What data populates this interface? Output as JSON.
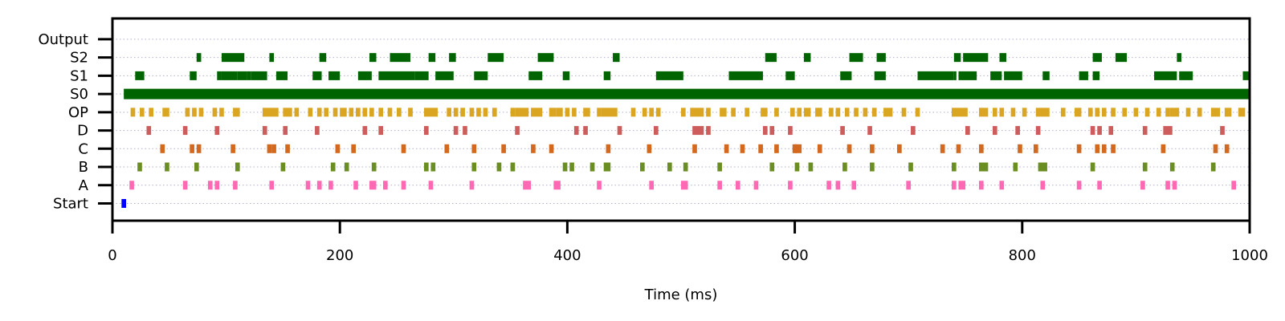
{
  "chart_data": {
    "type": "raster",
    "xlabel": "Time (ms)",
    "xlim": [
      0,
      1000
    ],
    "x_ticks": [
      0,
      200,
      400,
      600,
      800,
      1000
    ],
    "grid": "horizontal-dotted",
    "rows": [
      "Start",
      "A",
      "B",
      "C",
      "D",
      "OP",
      "S0",
      "S1",
      "S2",
      "Output"
    ],
    "colors": {
      "Start": "#0000ff",
      "A": "#ff69b4",
      "B": "#6b8e23",
      "C": "#d2691e",
      "D": "#cd5c5c",
      "OP": "#daa520",
      "S0": "#006400",
      "S1": "#006400",
      "S2": "#006400",
      "Output": "#000000",
      "grid": "#b0b0d0"
    },
    "series": [
      {
        "name": "Start",
        "intervals": [
          [
            8,
            12
          ]
        ]
      },
      {
        "name": "A",
        "intervals": [
          [
            15,
            19
          ],
          [
            62,
            66
          ],
          [
            84,
            88
          ],
          [
            90,
            94
          ],
          [
            106,
            110
          ],
          [
            138,
            142
          ],
          [
            170,
            174
          ],
          [
            180,
            184
          ],
          [
            190,
            194
          ],
          [
            212,
            216
          ],
          [
            226,
            232
          ],
          [
            238,
            242
          ],
          [
            254,
            258
          ],
          [
            278,
            282
          ],
          [
            314,
            318
          ],
          [
            361,
            368
          ],
          [
            388,
            394
          ],
          [
            426,
            430
          ],
          [
            472,
            476
          ],
          [
            500,
            506
          ],
          [
            532,
            536
          ],
          [
            548,
            552
          ],
          [
            564,
            568
          ],
          [
            594,
            598
          ],
          [
            628,
            632
          ],
          [
            636,
            640
          ],
          [
            650,
            654
          ],
          [
            698,
            702
          ],
          [
            738,
            742
          ],
          [
            744,
            750
          ],
          [
            762,
            766
          ],
          [
            780,
            784
          ],
          [
            816,
            820
          ],
          [
            848,
            852
          ],
          [
            866,
            870
          ],
          [
            904,
            908
          ],
          [
            926,
            930
          ],
          [
            932,
            936
          ],
          [
            984,
            988
          ]
        ]
      },
      {
        "name": "B",
        "intervals": [
          [
            22,
            26
          ],
          [
            46,
            50
          ],
          [
            72,
            76
          ],
          [
            108,
            112
          ],
          [
            148,
            152
          ],
          [
            192,
            196
          ],
          [
            204,
            208
          ],
          [
            228,
            232
          ],
          [
            274,
            278
          ],
          [
            280,
            284
          ],
          [
            316,
            320
          ],
          [
            338,
            342
          ],
          [
            350,
            354
          ],
          [
            396,
            400
          ],
          [
            402,
            406
          ],
          [
            420,
            424
          ],
          [
            432,
            438
          ],
          [
            464,
            468
          ],
          [
            488,
            492
          ],
          [
            502,
            506
          ],
          [
            532,
            536
          ],
          [
            578,
            582
          ],
          [
            600,
            604
          ],
          [
            612,
            616
          ],
          [
            642,
            646
          ],
          [
            666,
            670
          ],
          [
            700,
            704
          ],
          [
            738,
            742
          ],
          [
            762,
            770
          ],
          [
            792,
            796
          ],
          [
            814,
            822
          ],
          [
            860,
            864
          ],
          [
            906,
            910
          ],
          [
            930,
            934
          ],
          [
            966,
            970
          ]
        ]
      },
      {
        "name": "C",
        "intervals": [
          [
            42,
            46
          ],
          [
            68,
            72
          ],
          [
            74,
            78
          ],
          [
            104,
            108
          ],
          [
            136,
            140
          ],
          [
            140,
            144
          ],
          [
            152,
            156
          ],
          [
            196,
            200
          ],
          [
            210,
            214
          ],
          [
            254,
            258
          ],
          [
            292,
            296
          ],
          [
            316,
            320
          ],
          [
            342,
            346
          ],
          [
            368,
            372
          ],
          [
            384,
            388
          ],
          [
            434,
            438
          ],
          [
            470,
            474
          ],
          [
            510,
            514
          ],
          [
            538,
            542
          ],
          [
            552,
            556
          ],
          [
            568,
            572
          ],
          [
            582,
            586
          ],
          [
            598,
            602
          ],
          [
            600,
            606
          ],
          [
            620,
            624
          ],
          [
            646,
            650
          ],
          [
            666,
            670
          ],
          [
            690,
            694
          ],
          [
            728,
            732
          ],
          [
            742,
            746
          ],
          [
            762,
            766
          ],
          [
            796,
            800
          ],
          [
            810,
            814
          ],
          [
            848,
            852
          ],
          [
            864,
            868
          ],
          [
            870,
            874
          ],
          [
            878,
            882
          ],
          [
            922,
            926
          ],
          [
            968,
            972
          ],
          [
            978,
            982
          ]
        ]
      },
      {
        "name": "D",
        "intervals": [
          [
            30,
            34
          ],
          [
            62,
            66
          ],
          [
            90,
            94
          ],
          [
            132,
            136
          ],
          [
            150,
            154
          ],
          [
            178,
            182
          ],
          [
            220,
            224
          ],
          [
            234,
            238
          ],
          [
            274,
            278
          ],
          [
            300,
            304
          ],
          [
            308,
            312
          ],
          [
            354,
            358
          ],
          [
            406,
            410
          ],
          [
            414,
            418
          ],
          [
            444,
            448
          ],
          [
            476,
            480
          ],
          [
            510,
            520
          ],
          [
            522,
            526
          ],
          [
            572,
            576
          ],
          [
            578,
            582
          ],
          [
            594,
            598
          ],
          [
            640,
            644
          ],
          [
            664,
            668
          ],
          [
            702,
            706
          ],
          [
            750,
            754
          ],
          [
            774,
            778
          ],
          [
            794,
            798
          ],
          [
            812,
            816
          ],
          [
            860,
            864
          ],
          [
            866,
            870
          ],
          [
            876,
            880
          ],
          [
            906,
            910
          ],
          [
            924,
            932
          ],
          [
            974,
            978
          ]
        ]
      },
      {
        "name": "OP",
        "intervals": [
          [
            16,
            20
          ],
          [
            24,
            28
          ],
          [
            32,
            36
          ],
          [
            44,
            50
          ],
          [
            64,
            68
          ],
          [
            70,
            74
          ],
          [
            76,
            80
          ],
          [
            88,
            92
          ],
          [
            94,
            98
          ],
          [
            106,
            112
          ],
          [
            132,
            146
          ],
          [
            150,
            158
          ],
          [
            160,
            164
          ],
          [
            172,
            176
          ],
          [
            180,
            184
          ],
          [
            186,
            190
          ],
          [
            194,
            198
          ],
          [
            200,
            206
          ],
          [
            208,
            212
          ],
          [
            214,
            218
          ],
          [
            220,
            224
          ],
          [
            226,
            230
          ],
          [
            234,
            238
          ],
          [
            242,
            246
          ],
          [
            250,
            254
          ],
          [
            260,
            264
          ],
          [
            274,
            286
          ],
          [
            294,
            298
          ],
          [
            300,
            304
          ],
          [
            306,
            310
          ],
          [
            314,
            318
          ],
          [
            320,
            324
          ],
          [
            326,
            330
          ],
          [
            334,
            338
          ],
          [
            350,
            354
          ],
          [
            354,
            366
          ],
          [
            368,
            378
          ],
          [
            384,
            390
          ],
          [
            390,
            396
          ],
          [
            398,
            402
          ],
          [
            404,
            408
          ],
          [
            414,
            420
          ],
          [
            426,
            430
          ],
          [
            430,
            444
          ],
          [
            456,
            460
          ],
          [
            466,
            470
          ],
          [
            472,
            476
          ],
          [
            478,
            482
          ],
          [
            500,
            504
          ],
          [
            508,
            520
          ],
          [
            522,
            526
          ],
          [
            534,
            540
          ],
          [
            544,
            548
          ],
          [
            556,
            560
          ],
          [
            570,
            576
          ],
          [
            582,
            586
          ],
          [
            596,
            600
          ],
          [
            602,
            606
          ],
          [
            608,
            614
          ],
          [
            618,
            624
          ],
          [
            630,
            634
          ],
          [
            636,
            640
          ],
          [
            644,
            648
          ],
          [
            652,
            656
          ],
          [
            660,
            664
          ],
          [
            668,
            672
          ],
          [
            678,
            686
          ],
          [
            694,
            698
          ],
          [
            706,
            710
          ],
          [
            738,
            752
          ],
          [
            762,
            770
          ],
          [
            774,
            778
          ],
          [
            780,
            784
          ],
          [
            790,
            794
          ],
          [
            800,
            804
          ],
          [
            812,
            824
          ],
          [
            834,
            838
          ],
          [
            846,
            852
          ],
          [
            858,
            862
          ],
          [
            864,
            868
          ],
          [
            870,
            874
          ],
          [
            878,
            882
          ],
          [
            888,
            892
          ],
          [
            898,
            902
          ],
          [
            908,
            912
          ],
          [
            918,
            922
          ],
          [
            926,
            930
          ],
          [
            930,
            938
          ],
          [
            944,
            948
          ],
          [
            954,
            958
          ],
          [
            966,
            974
          ],
          [
            978,
            984
          ],
          [
            990,
            996
          ]
        ]
      },
      {
        "name": "S0",
        "intervals": [
          [
            10,
            1000
          ]
        ]
      },
      {
        "name": "S1",
        "intervals": [
          [
            20,
            28
          ],
          [
            68,
            74
          ],
          [
            92,
            96
          ],
          [
            96,
            110
          ],
          [
            110,
            118
          ],
          [
            118,
            122
          ],
          [
            122,
            136
          ],
          [
            144,
            154
          ],
          [
            176,
            184
          ],
          [
            190,
            200
          ],
          [
            216,
            228
          ],
          [
            234,
            250
          ],
          [
            250,
            266
          ],
          [
            266,
            278
          ],
          [
            284,
            300
          ],
          [
            318,
            330
          ],
          [
            366,
            378
          ],
          [
            396,
            402
          ],
          [
            432,
            438
          ],
          [
            478,
            502
          ],
          [
            542,
            572
          ],
          [
            592,
            600
          ],
          [
            640,
            650
          ],
          [
            670,
            680
          ],
          [
            708,
            740
          ],
          [
            740,
            742
          ],
          [
            744,
            760
          ],
          [
            772,
            782
          ],
          [
            784,
            800
          ],
          [
            818,
            824
          ],
          [
            850,
            858
          ],
          [
            862,
            868
          ],
          [
            916,
            936
          ],
          [
            938,
            950
          ],
          [
            994,
            1000
          ]
        ]
      },
      {
        "name": "S2",
        "intervals": [
          [
            74,
            78
          ],
          [
            96,
            116
          ],
          [
            138,
            142
          ],
          [
            182,
            188
          ],
          [
            226,
            232
          ],
          [
            244,
            262
          ],
          [
            278,
            284
          ],
          [
            296,
            302
          ],
          [
            330,
            344
          ],
          [
            374,
            388
          ],
          [
            440,
            446
          ],
          [
            574,
            584
          ],
          [
            608,
            614
          ],
          [
            648,
            660
          ],
          [
            672,
            680
          ],
          [
            740,
            746
          ],
          [
            748,
            770
          ],
          [
            780,
            786
          ],
          [
            862,
            870
          ],
          [
            882,
            892
          ],
          [
            936,
            940
          ]
        ]
      },
      {
        "name": "Output",
        "intervals": []
      }
    ]
  }
}
